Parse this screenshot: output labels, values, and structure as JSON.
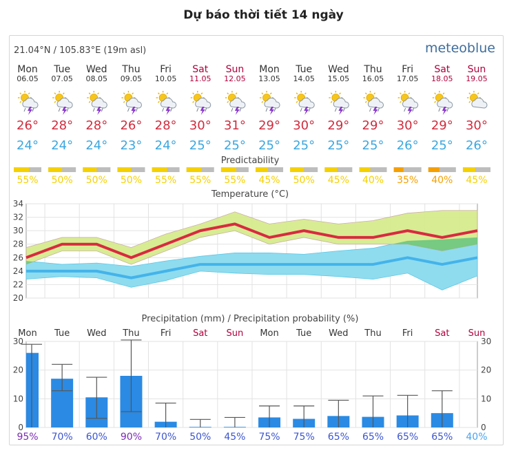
{
  "page": {
    "title": "Dự báo thời tiết 14 ngày"
  },
  "header": {
    "coords": "21.04°N / 105.83°E (19m asl)",
    "brand": "meteoblue"
  },
  "days": [
    {
      "dow": "Mon",
      "date": "06.05",
      "weekend": false,
      "tmax": "26°",
      "tmin": "24°",
      "pred": "55%",
      "pred_value": 0.55,
      "pred_color": "#f5d100",
      "icon": "thunderstorm-sun-icon"
    },
    {
      "dow": "Tue",
      "date": "07.05",
      "weekend": false,
      "tmax": "28°",
      "tmin": "24°",
      "pred": "50%",
      "pred_value": 0.5,
      "pred_color": "#f5d100",
      "icon": "thunderstorm-sun-icon"
    },
    {
      "dow": "Wed",
      "date": "08.05",
      "weekend": false,
      "tmax": "28°",
      "tmin": "24°",
      "pred": "50%",
      "pred_value": 0.5,
      "pred_color": "#f5d100",
      "icon": "thunderstorm-sun-icon"
    },
    {
      "dow": "Thu",
      "date": "09.05",
      "weekend": false,
      "tmax": "26°",
      "tmin": "23°",
      "pred": "50%",
      "pred_value": 0.5,
      "pred_color": "#f5d100",
      "icon": "thunderstorm-sun-icon"
    },
    {
      "dow": "Fri",
      "date": "10.05",
      "weekend": false,
      "tmax": "28°",
      "tmin": "24°",
      "pred": "55%",
      "pred_value": 0.55,
      "pred_color": "#f5d100",
      "icon": "thunderstorm-sun-icon"
    },
    {
      "dow": "Sat",
      "date": "11.05",
      "weekend": true,
      "tmax": "30°",
      "tmin": "25°",
      "pred": "55%",
      "pred_value": 0.55,
      "pred_color": "#f5d100",
      "icon": "thunderstorm-sun-icon"
    },
    {
      "dow": "Sun",
      "date": "12.05",
      "weekend": true,
      "tmax": "31°",
      "tmin": "25°",
      "pred": "55%",
      "pred_value": 0.55,
      "pred_color": "#f5d100",
      "icon": "thunderstorm-sun-icon"
    },
    {
      "dow": "Mon",
      "date": "13.05",
      "weekend": false,
      "tmax": "29°",
      "tmin": "25°",
      "pred": "45%",
      "pred_value": 0.45,
      "pred_color": "#f5d100",
      "icon": "thunderstorm-sun-icon"
    },
    {
      "dow": "Tue",
      "date": "14.05",
      "weekend": false,
      "tmax": "30°",
      "tmin": "25°",
      "pred": "50%",
      "pred_value": 0.5,
      "pred_color": "#f5d100",
      "icon": "thunderstorm-sun-icon"
    },
    {
      "dow": "Wed",
      "date": "15.05",
      "weekend": false,
      "tmax": "29°",
      "tmin": "25°",
      "pred": "45%",
      "pred_value": 0.45,
      "pred_color": "#f5d100",
      "icon": "thunderstorm-sun-icon"
    },
    {
      "dow": "Thu",
      "date": "16.05",
      "weekend": false,
      "tmax": "29°",
      "tmin": "25°",
      "pred": "40%",
      "pred_value": 0.4,
      "pred_color": "#f5d100",
      "icon": "thunderstorm-sun-icon"
    },
    {
      "dow": "Fri",
      "date": "17.05",
      "weekend": false,
      "tmax": "30°",
      "tmin": "26°",
      "pred": "35%",
      "pred_value": 0.35,
      "pred_color": "#f5a000",
      "icon": "thunderstorm-sun-icon"
    },
    {
      "dow": "Sat",
      "date": "18.05",
      "weekend": true,
      "tmax": "29°",
      "tmin": "25°",
      "pred": "40%",
      "pred_value": 0.4,
      "pred_color": "#f5a000",
      "icon": "thunderstorm-sun-icon"
    },
    {
      "dow": "Sun",
      "date": "19.05",
      "weekend": true,
      "tmax": "30°",
      "tmin": "26°",
      "pred": "45%",
      "pred_value": 0.45,
      "pred_color": "#f5d100",
      "icon": "partly-cloudy-sun-icon"
    }
  ],
  "predictability": {
    "title": "Predictability"
  },
  "colors": {
    "weekday": "#333333",
    "weekend": "#b0003c",
    "tmax": "#d22b3c",
    "tmin": "#3aa7e0",
    "max_band": "#d6ec8e",
    "min_band": "#8fdcef",
    "overlap_band": "#6cc680",
    "max_line": "#d92a40",
    "min_line": "#44b3ea",
    "bar": "#2b8ae3",
    "prob_high": "#7a29b6",
    "prob_mid": "#3b55d0",
    "prob_low": "#4aa3ef"
  },
  "chart_data": [
    {
      "type": "line",
      "title": "Temperature (°C)",
      "x": [
        "Mon",
        "Tue",
        "Wed",
        "Thu",
        "Fri",
        "Sat",
        "Sun",
        "Mon",
        "Tue",
        "Wed",
        "Thu",
        "Fri",
        "Sat",
        "Sun"
      ],
      "ylim": [
        20,
        34
      ],
      "yticks": [
        20,
        22,
        24,
        26,
        28,
        30,
        32,
        34
      ],
      "grid": true,
      "series": [
        {
          "name": "max",
          "values": [
            26,
            28,
            28,
            26,
            28,
            30,
            31,
            29,
            30,
            29,
            29,
            30,
            29,
            30
          ],
          "low": [
            25,
            27,
            27,
            25,
            27,
            29,
            30,
            28,
            29,
            28,
            28,
            28,
            27,
            28
          ],
          "high": [
            27.5,
            29,
            29,
            27.5,
            29.5,
            31,
            32.8,
            31,
            31.7,
            31,
            31.5,
            32.6,
            33,
            33
          ]
        },
        {
          "name": "min",
          "values": [
            24,
            24,
            24,
            23,
            24,
            25,
            25,
            25,
            25,
            25,
            25,
            26,
            25,
            26
          ],
          "low": [
            22.8,
            23.2,
            23,
            21.6,
            22.6,
            24,
            23.7,
            23.5,
            23.5,
            23.2,
            22.8,
            23.7,
            21.2,
            23.3
          ],
          "high": [
            25.5,
            25,
            25.2,
            24.7,
            25.5,
            26.2,
            26.7,
            26.7,
            26.5,
            27,
            27.4,
            28.5,
            28.7,
            29
          ]
        }
      ]
    },
    {
      "type": "bar",
      "title": "Precipitation (mm) / Precipitation probability (%)",
      "categories": [
        "Mon",
        "Tue",
        "Wed",
        "Thu",
        "Fri",
        "Sat",
        "Sun",
        "Mon",
        "Tue",
        "Wed",
        "Thu",
        "Fri",
        "Sat",
        "Sun"
      ],
      "values": [
        26,
        17,
        10.5,
        18,
        2,
        0.2,
        0.2,
        3.5,
        3,
        4,
        3.7,
        4.2,
        5,
        0
      ],
      "range_low": [
        0,
        12.8,
        3.2,
        5.5,
        0,
        0,
        0,
        0,
        0,
        0,
        0,
        0,
        0,
        null
      ],
      "range_high": [
        29,
        22,
        17.5,
        30.5,
        8.5,
        2.8,
        3.5,
        7.5,
        7.5,
        9.5,
        11,
        11.2,
        12.8,
        null
      ],
      "probability": [
        "95%",
        "70%",
        "60%",
        "90%",
        "70%",
        "50%",
        "45%",
        "75%",
        "75%",
        "65%",
        "65%",
        "65%",
        "65%",
        "40%"
      ],
      "ylim": [
        0,
        30
      ],
      "yticks": [
        0,
        10,
        20,
        30
      ],
      "grid": true
    }
  ]
}
